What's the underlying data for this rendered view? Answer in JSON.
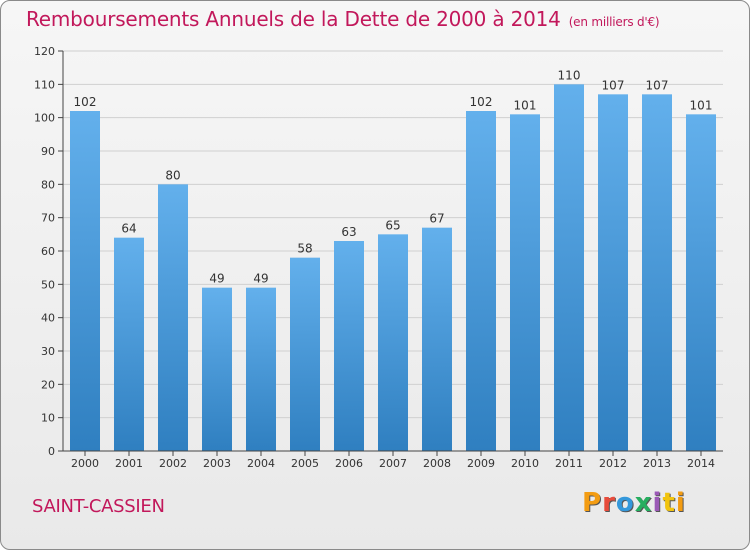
{
  "header": {
    "title": "Remboursements Annuels de la Dette de 2000 à 2014",
    "unit": "(en milliers d'€)"
  },
  "footer": {
    "city": "SAINT-CASSIEN",
    "logo_letters": [
      "P",
      "r",
      "o",
      "x",
      "i",
      "t",
      "i"
    ]
  },
  "colors": {
    "title": "#c2185b",
    "bar_top": "#63b0ec",
    "bar_bottom": "#2f7fc0",
    "grid": "#d0d0d0",
    "axis": "#444444"
  },
  "chart_data": {
    "type": "bar",
    "categories": [
      "2000",
      "2001",
      "2002",
      "2003",
      "2004",
      "2005",
      "2006",
      "2007",
      "2008",
      "2009",
      "2010",
      "2011",
      "2012",
      "2013",
      "2014"
    ],
    "values": [
      102,
      64,
      80,
      49,
      49,
      58,
      63,
      65,
      67,
      102,
      101,
      110,
      107,
      107,
      101
    ],
    "title": "Remboursements Annuels de la Dette de 2000 à 2014",
    "xlabel": "",
    "ylabel": "",
    "ylim": [
      0,
      120
    ],
    "yticks": [
      0,
      10,
      20,
      30,
      40,
      50,
      60,
      70,
      80,
      90,
      100,
      110,
      120
    ],
    "grid": true,
    "data_labels": true
  }
}
